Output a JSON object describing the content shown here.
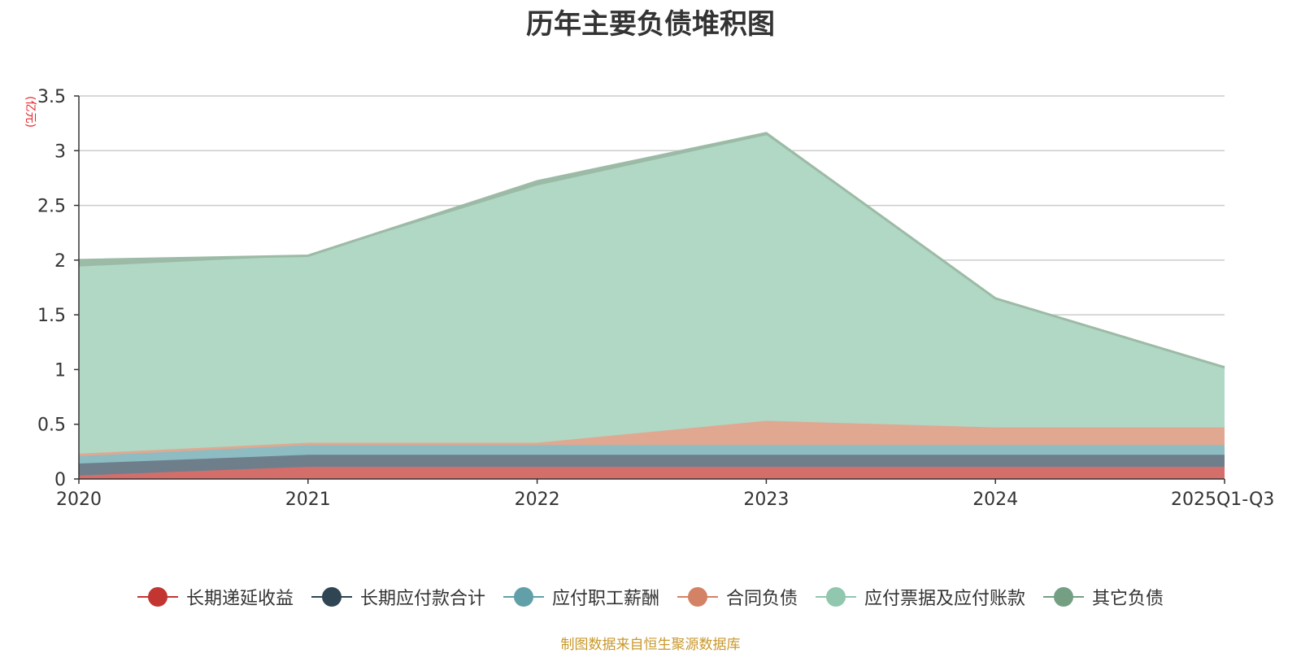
{
  "chart_data": {
    "type": "area",
    "stacked": true,
    "title": "历年主要负债堆积图",
    "unit_label": "(亿元)",
    "categories": [
      "2020",
      "2021",
      "2022",
      "2023",
      "2024",
      "2025Q1-Q3"
    ],
    "y_ticks": [
      "0",
      "0.5",
      "1",
      "1.5",
      "2",
      "2.5",
      "3",
      "3.5"
    ],
    "ylim": [
      0,
      3.5
    ],
    "grid": true,
    "legend_position": "bottom",
    "series": [
      {
        "name": "长期递延收益",
        "color": "#c23531",
        "fill": "#d46e6b",
        "values": [
          0.02,
          0.1,
          0.1,
          0.1,
          0.1,
          0.1
        ]
      },
      {
        "name": "长期应付款合计",
        "color": "#2f4554",
        "fill": "#6e7f8b",
        "values": [
          0.11,
          0.11,
          0.11,
          0.11,
          0.11,
          0.11
        ]
      },
      {
        "name": "应付职工薪酬",
        "color": "#61a0a8",
        "fill": "#8dbcc2",
        "values": [
          0.08,
          0.09,
          0.09,
          0.09,
          0.09,
          0.09
        ]
      },
      {
        "name": "合同负债",
        "color": "#d48265",
        "fill": "#e0a890",
        "values": [
          0.01,
          0.02,
          0.02,
          0.22,
          0.16,
          0.16
        ]
      },
      {
        "name": "应付票据及应付账款",
        "color": "#91c7ae",
        "fill": "#b1d7c5",
        "values": [
          1.71,
          1.71,
          2.35,
          2.61,
          1.17,
          0.54
        ]
      },
      {
        "name": "其它负债",
        "color": "#749f83",
        "fill": "#9cbba6",
        "values": [
          0.07,
          0.01,
          0.05,
          0.03,
          0.02,
          0.02
        ]
      }
    ]
  },
  "source_text": "制图数据来自恒生聚源数据库"
}
